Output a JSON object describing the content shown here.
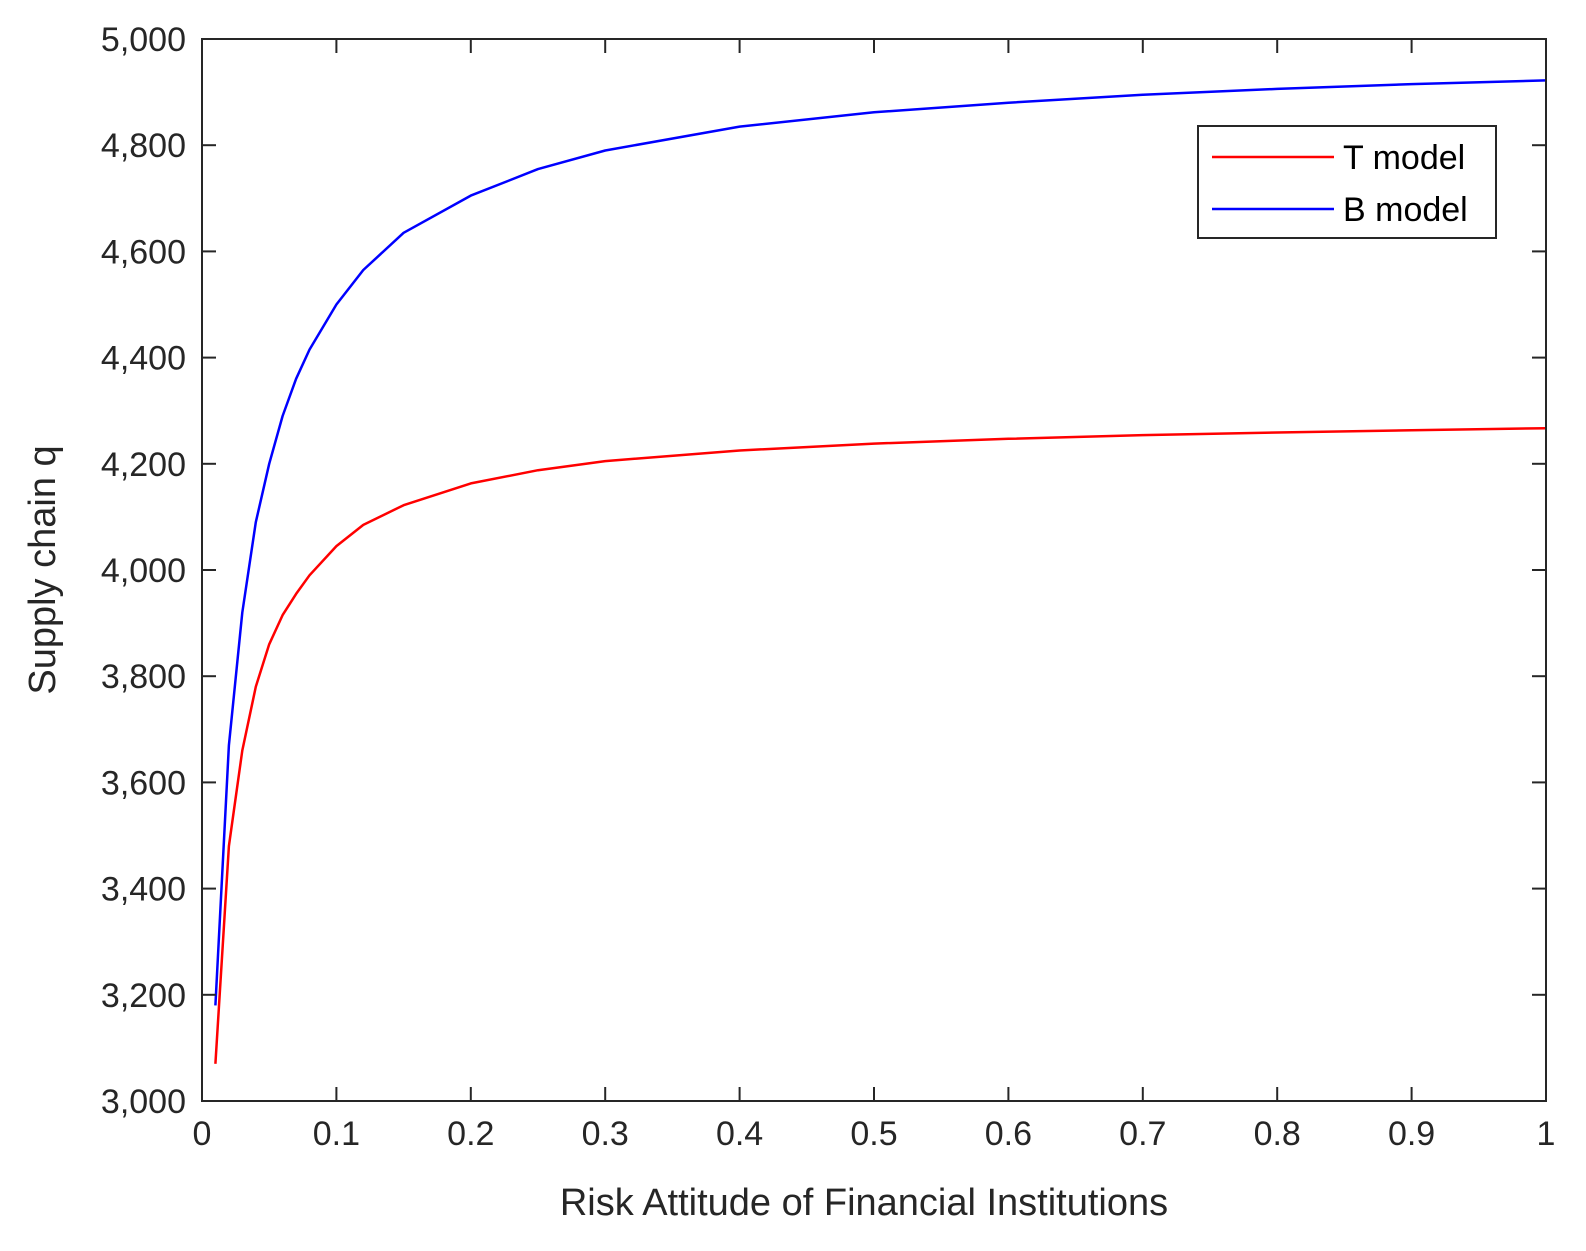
{
  "chart_data": {
    "type": "line",
    "xlabel": "Risk Attitude of Financial Institutions",
    "ylabel": "Supply chain q",
    "xlim": [
      0,
      1
    ],
    "ylim": [
      3000,
      5000
    ],
    "xticks": [
      "0",
      "0.1",
      "0.2",
      "0.3",
      "0.4",
      "0.5",
      "0.6",
      "0.7",
      "0.8",
      "0.9",
      "1"
    ],
    "yticks": [
      "3,000",
      "3,200",
      "3,400",
      "3,600",
      "3,800",
      "4,000",
      "4,200",
      "4,400",
      "4,600",
      "4,800",
      "5,000"
    ],
    "grid": false,
    "legend_position": "top-right",
    "series": [
      {
        "name": "T model",
        "color": "#ff0000",
        "x": [
          0.01,
          0.02,
          0.03,
          0.04,
          0.05,
          0.06,
          0.07,
          0.08,
          0.1,
          0.12,
          0.15,
          0.2,
          0.25,
          0.3,
          0.4,
          0.5,
          0.6,
          0.7,
          0.8,
          0.9,
          1.0
        ],
        "y": [
          3070,
          3480,
          3660,
          3780,
          3860,
          3915,
          3955,
          3990,
          4045,
          4085,
          4122,
          4163,
          4188,
          4205,
          4225,
          4238,
          4247,
          4254,
          4259,
          4263,
          4267
        ]
      },
      {
        "name": "B model",
        "color": "#0000ff",
        "x": [
          0.01,
          0.02,
          0.03,
          0.04,
          0.05,
          0.06,
          0.07,
          0.08,
          0.1,
          0.12,
          0.15,
          0.2,
          0.25,
          0.3,
          0.4,
          0.5,
          0.6,
          0.7,
          0.8,
          0.9,
          1.0
        ],
        "y": [
          3180,
          3670,
          3920,
          4090,
          4200,
          4290,
          4360,
          4415,
          4500,
          4565,
          4635,
          4705,
          4755,
          4790,
          4835,
          4862,
          4880,
          4895,
          4906,
          4915,
          4922
        ]
      }
    ]
  }
}
